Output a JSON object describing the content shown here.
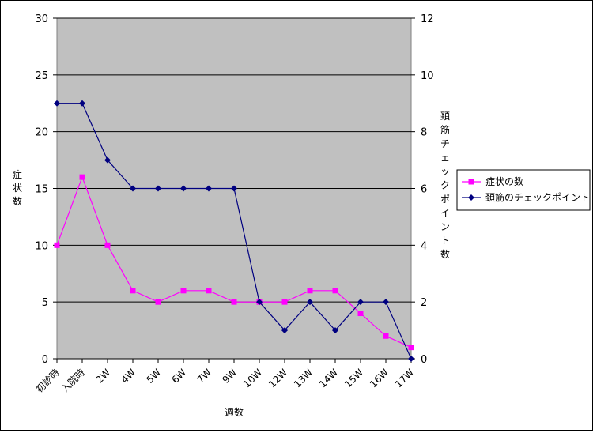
{
  "chart_data": {
    "type": "line",
    "xlabel": "週数",
    "ylabel": "症状数",
    "y2label": "頚筋チェックポイント数",
    "ylim": [
      0,
      30
    ],
    "y2lim": [
      0,
      12
    ],
    "yticks": [
      "0",
      "5",
      "10",
      "15",
      "20",
      "25",
      "30"
    ],
    "y2ticks": [
      "0",
      "2",
      "4",
      "6",
      "8",
      "10",
      "12"
    ],
    "grid": true,
    "legend_position": "right",
    "categories": [
      "初診時",
      "入院時",
      "2W",
      "4W",
      "5W",
      "6W",
      "7W",
      "9W",
      "10W",
      "12W",
      "13W",
      "14W",
      "15W",
      "16W",
      "17W"
    ],
    "series": [
      {
        "name": "症状の数",
        "axis": "left",
        "color": "#ff00ff",
        "marker": "square",
        "values": [
          10,
          16,
          10,
          6,
          5,
          6,
          6,
          5,
          5,
          5,
          6,
          6,
          4,
          2,
          1
        ]
      },
      {
        "name": "頚筋のチェックポイント",
        "axis": "right",
        "color": "#000080",
        "marker": "diamond",
        "values": [
          9,
          9,
          7,
          6,
          6,
          6,
          6,
          6,
          2,
          1,
          2,
          1,
          2,
          2,
          0
        ]
      }
    ]
  }
}
